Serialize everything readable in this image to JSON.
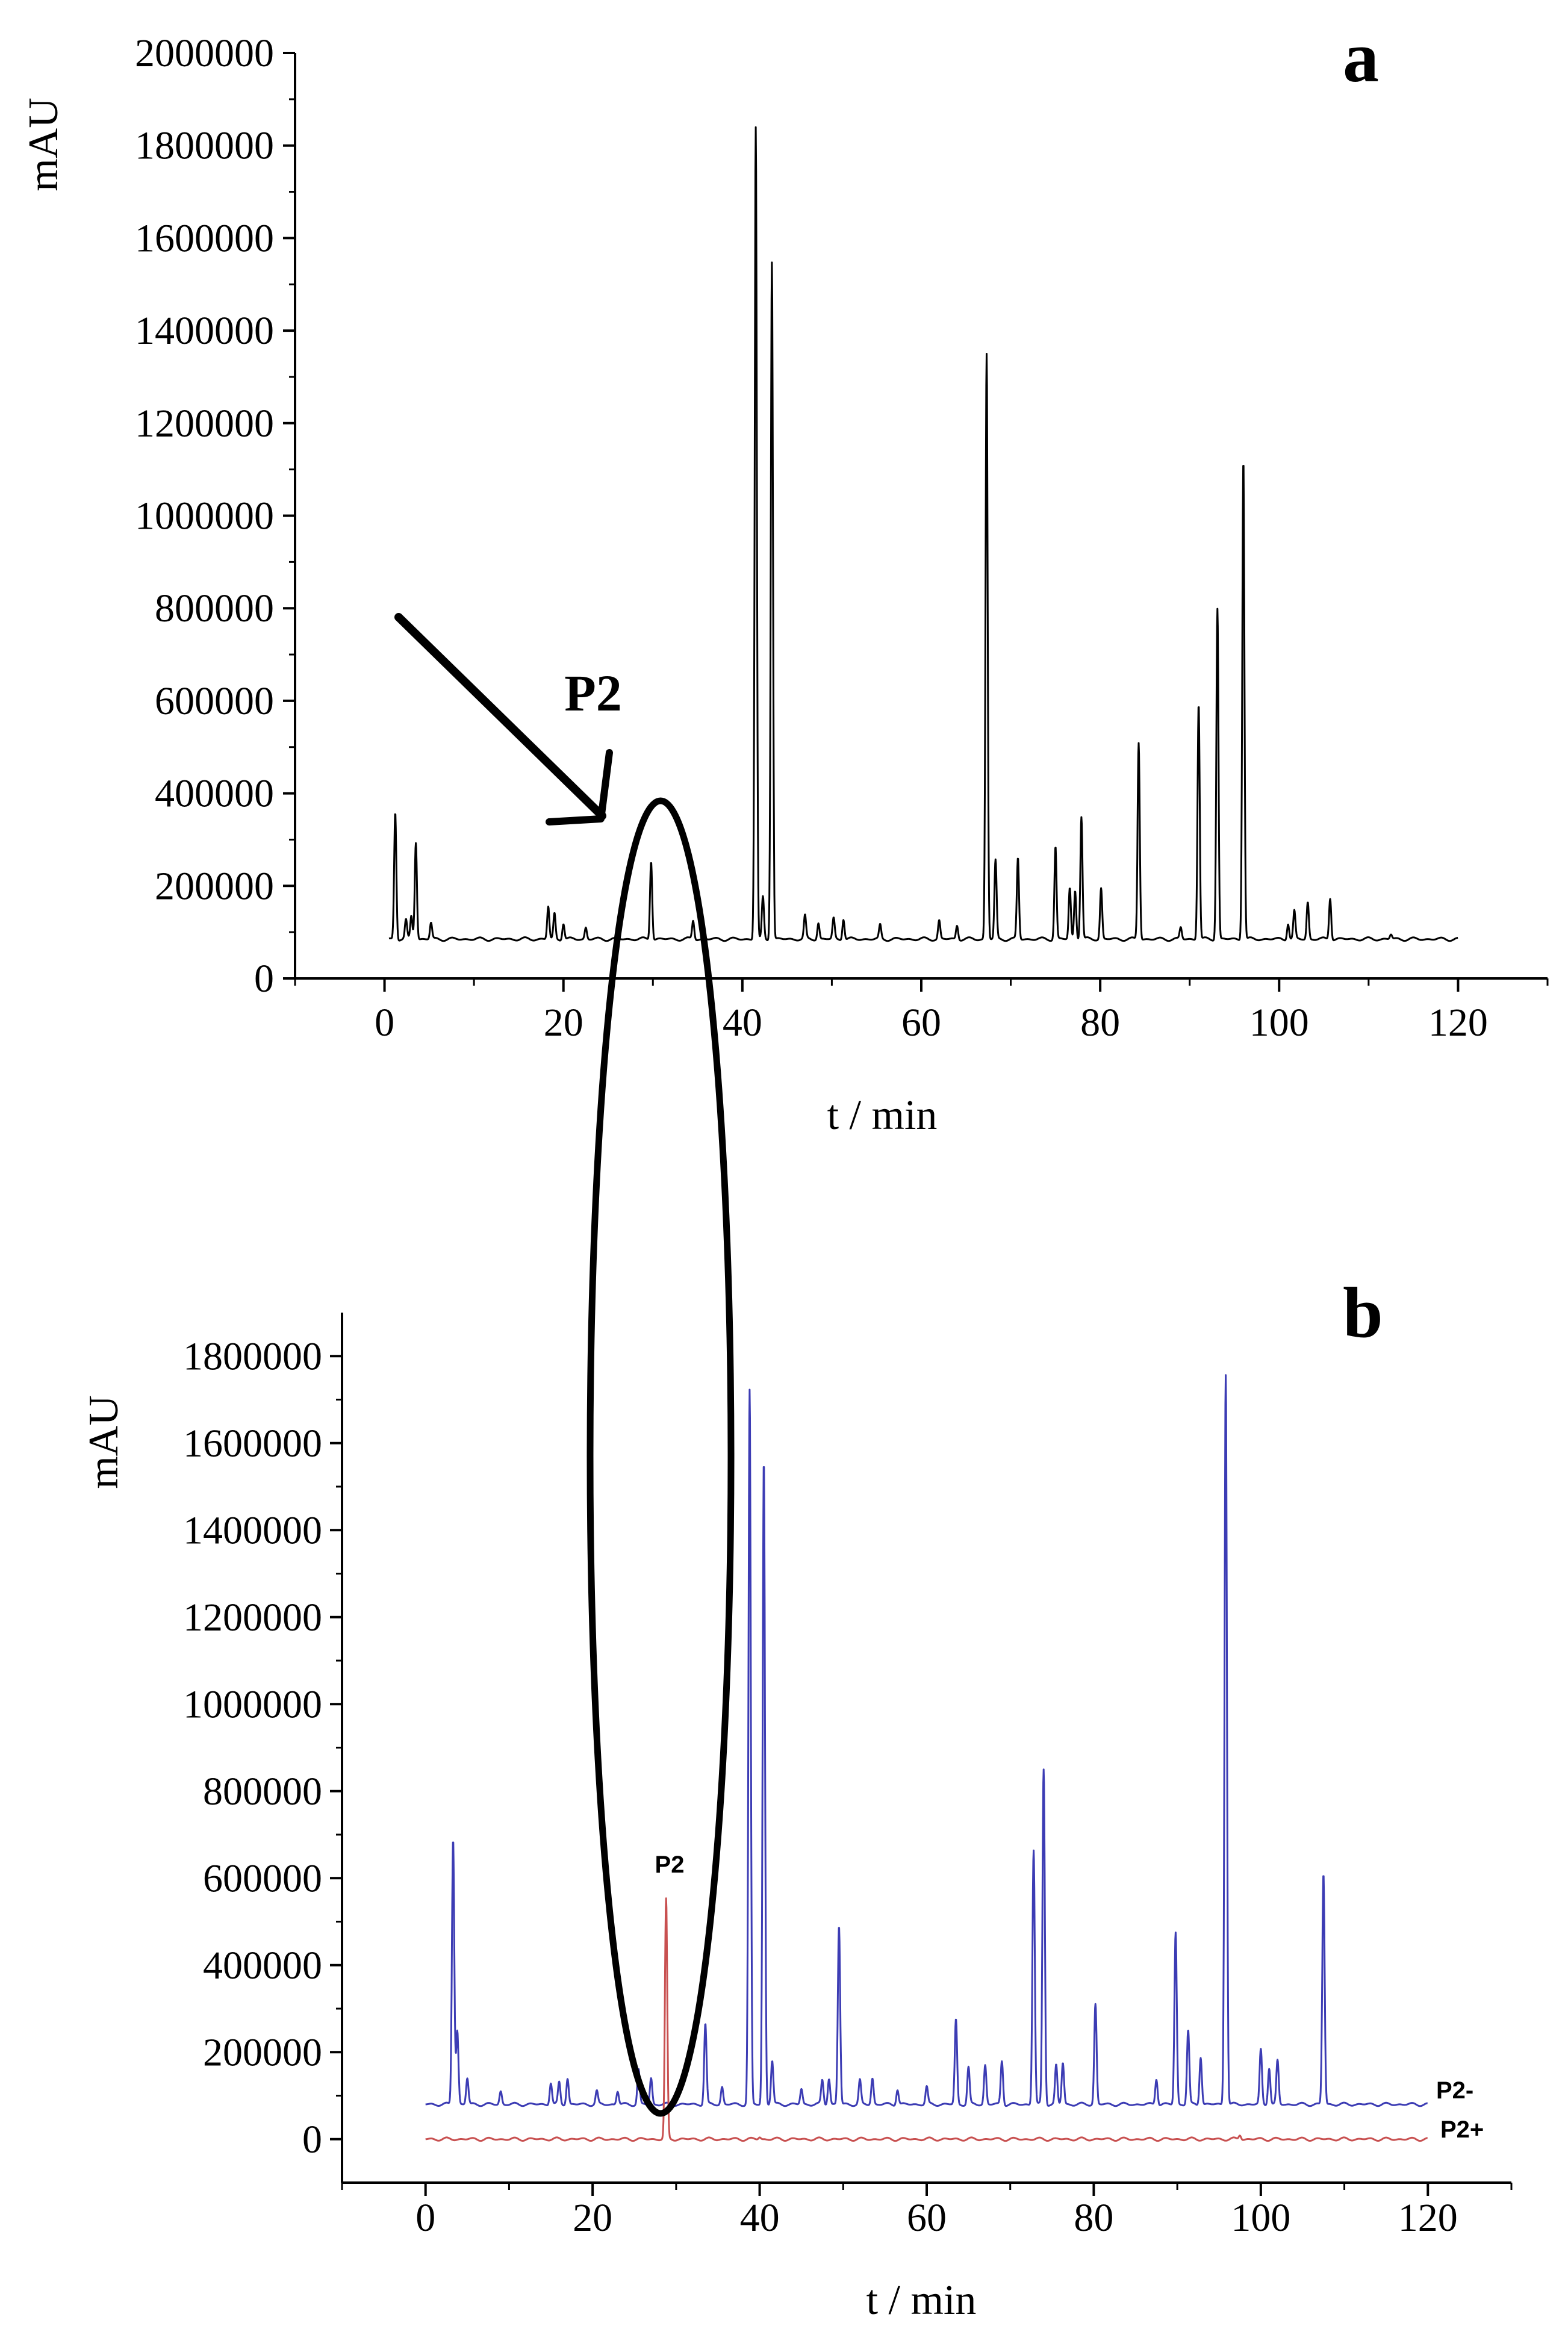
{
  "chart_data": [
    {
      "panel": "a",
      "type": "line",
      "xlabel": "t / min",
      "ylabel": "mAU",
      "xlim": [
        -10,
        130
      ],
      "ylim": [
        0,
        2000000
      ],
      "xticks": [
        "0",
        "20",
        "40",
        "60",
        "80",
        "100",
        "120"
      ],
      "yticks": [
        "0",
        "200000",
        "400000",
        "600000",
        "800000",
        "1000000",
        "1200000",
        "1400000",
        "1600000",
        "1800000",
        "2000000"
      ],
      "baseline": 85000,
      "x_range": [
        0.5,
        120
      ],
      "series": [
        {
          "color": "#000000",
          "peaks": [
            {
              "t": 1.2,
              "y": 360000
            },
            {
              "t": 2.4,
              "y": 125000
            },
            {
              "t": 3.0,
              "y": 135000
            },
            {
              "t": 3.5,
              "y": 295000
            },
            {
              "t": 5.2,
              "y": 120000
            },
            {
              "t": 18.3,
              "y": 155000
            },
            {
              "t": 19.0,
              "y": 140000
            },
            {
              "t": 20.0,
              "y": 120000
            },
            {
              "t": 22.5,
              "y": 110000
            },
            {
              "t": 29.8,
              "y": 255000
            },
            {
              "t": 34.5,
              "y": 125000
            },
            {
              "t": 41.5,
              "y": 1840000
            },
            {
              "t": 42.3,
              "y": 175000
            },
            {
              "t": 43.3,
              "y": 1550000
            },
            {
              "t": 47.0,
              "y": 135000
            },
            {
              "t": 48.5,
              "y": 120000
            },
            {
              "t": 50.2,
              "y": 130000
            },
            {
              "t": 51.3,
              "y": 130000
            },
            {
              "t": 55.4,
              "y": 115000
            },
            {
              "t": 62.0,
              "y": 125000
            },
            {
              "t": 64.0,
              "y": 115000
            },
            {
              "t": 67.3,
              "y": 1350000
            },
            {
              "t": 68.3,
              "y": 255000
            },
            {
              "t": 70.8,
              "y": 260000
            },
            {
              "t": 75.0,
              "y": 285000
            },
            {
              "t": 76.6,
              "y": 195000
            },
            {
              "t": 77.2,
              "y": 190000
            },
            {
              "t": 77.9,
              "y": 350000
            },
            {
              "t": 80.1,
              "y": 195000
            },
            {
              "t": 84.3,
              "y": 510000
            },
            {
              "t": 89.0,
              "y": 110000
            },
            {
              "t": 91.0,
              "y": 595000
            },
            {
              "t": 93.1,
              "y": 800000
            },
            {
              "t": 96.0,
              "y": 1125000
            },
            {
              "t": 101.0,
              "y": 120000
            },
            {
              "t": 101.7,
              "y": 145000
            },
            {
              "t": 103.2,
              "y": 165000
            },
            {
              "t": 105.7,
              "y": 175000
            },
            {
              "t": 112.5,
              "y": 95000
            }
          ]
        }
      ],
      "annotations": [
        {
          "label": "P2"
        }
      ]
    },
    {
      "panel": "b",
      "type": "line",
      "xlabel": "t / min",
      "ylabel": "mAU",
      "xlim": [
        -10,
        130
      ],
      "ylim": [
        -100000,
        1900000
      ],
      "xticks": [
        "0",
        "20",
        "40",
        "60",
        "80",
        "100",
        "120"
      ],
      "yticks": [
        "0",
        "200000",
        "400000",
        "600000",
        "800000",
        "1000000",
        "1200000",
        "1400000",
        "1600000",
        "1800000"
      ],
      "series": [
        {
          "name": "P2-",
          "color": "#3c3cb4",
          "baseline": 80000,
          "x_range": [
            0,
            120
          ],
          "peaks": [
            {
              "t": 3.3,
              "y": 690000
            },
            {
              "t": 3.8,
              "y": 250000
            },
            {
              "t": 5.0,
              "y": 140000
            },
            {
              "t": 9.0,
              "y": 110000
            },
            {
              "t": 15.0,
              "y": 130000
            },
            {
              "t": 16.0,
              "y": 130000
            },
            {
              "t": 17.0,
              "y": 140000
            },
            {
              "t": 20.5,
              "y": 110000
            },
            {
              "t": 23.0,
              "y": 110000
            },
            {
              "t": 25.5,
              "y": 160000
            },
            {
              "t": 27.0,
              "y": 140000
            },
            {
              "t": 33.5,
              "y": 265000
            },
            {
              "t": 35.5,
              "y": 120000
            },
            {
              "t": 38.8,
              "y": 1720000
            },
            {
              "t": 40.5,
              "y": 1560000
            },
            {
              "t": 41.5,
              "y": 180000
            },
            {
              "t": 45.0,
              "y": 115000
            },
            {
              "t": 47.5,
              "y": 135000
            },
            {
              "t": 48.3,
              "y": 140000
            },
            {
              "t": 49.5,
              "y": 490000
            },
            {
              "t": 52.0,
              "y": 135000
            },
            {
              "t": 53.5,
              "y": 140000
            },
            {
              "t": 56.5,
              "y": 115000
            },
            {
              "t": 60.0,
              "y": 120000
            },
            {
              "t": 63.5,
              "y": 275000
            },
            {
              "t": 65.0,
              "y": 165000
            },
            {
              "t": 67.0,
              "y": 170000
            },
            {
              "t": 69.0,
              "y": 180000
            },
            {
              "t": 72.8,
              "y": 665000
            },
            {
              "t": 74.0,
              "y": 850000
            },
            {
              "t": 75.5,
              "y": 170000
            },
            {
              "t": 76.3,
              "y": 175000
            },
            {
              "t": 80.2,
              "y": 310000
            },
            {
              "t": 87.5,
              "y": 140000
            },
            {
              "t": 89.8,
              "y": 475000
            },
            {
              "t": 91.3,
              "y": 250000
            },
            {
              "t": 92.8,
              "y": 190000
            },
            {
              "t": 95.8,
              "y": 1760000
            },
            {
              "t": 100.0,
              "y": 205000
            },
            {
              "t": 101.0,
              "y": 165000
            },
            {
              "t": 102.0,
              "y": 180000
            },
            {
              "t": 107.5,
              "y": 610000
            }
          ]
        },
        {
          "name": "P2+",
          "color": "#c85050",
          "baseline": 0,
          "x_range": [
            0,
            120
          ],
          "peaks": [
            {
              "t": 28.8,
              "y": 550000
            },
            {
              "t": 40.0,
              "y": 5000
            },
            {
              "t": 97.5,
              "y": 10000
            }
          ]
        }
      ],
      "annotations": [
        {
          "label": "P2"
        }
      ]
    }
  ]
}
